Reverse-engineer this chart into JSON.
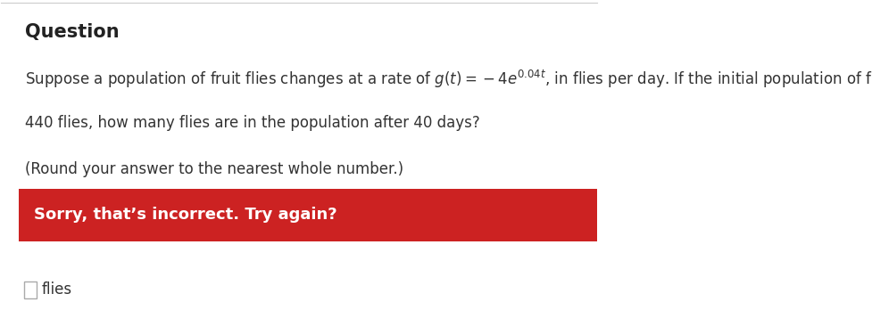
{
  "title": "Question",
  "line1": "Suppose a population of fruit flies changes at a rate of $g(t) = -4e^{0.04t}$, in flies per day. If the initial population of fruit flies is",
  "line2": "440 flies, how many flies are in the population after 40 days?",
  "line3": "(Round your answer to the nearest whole number.)",
  "error_text": "Sorry, that’s incorrect. Try again?",
  "answer_label": "flies",
  "white_bg": "#ffffff",
  "error_bg": "#cc2222",
  "error_text_color": "#ffffff",
  "title_color": "#222222",
  "body_color": "#333333",
  "title_fontsize": 15,
  "body_fontsize": 12,
  "error_fontsize": 13
}
